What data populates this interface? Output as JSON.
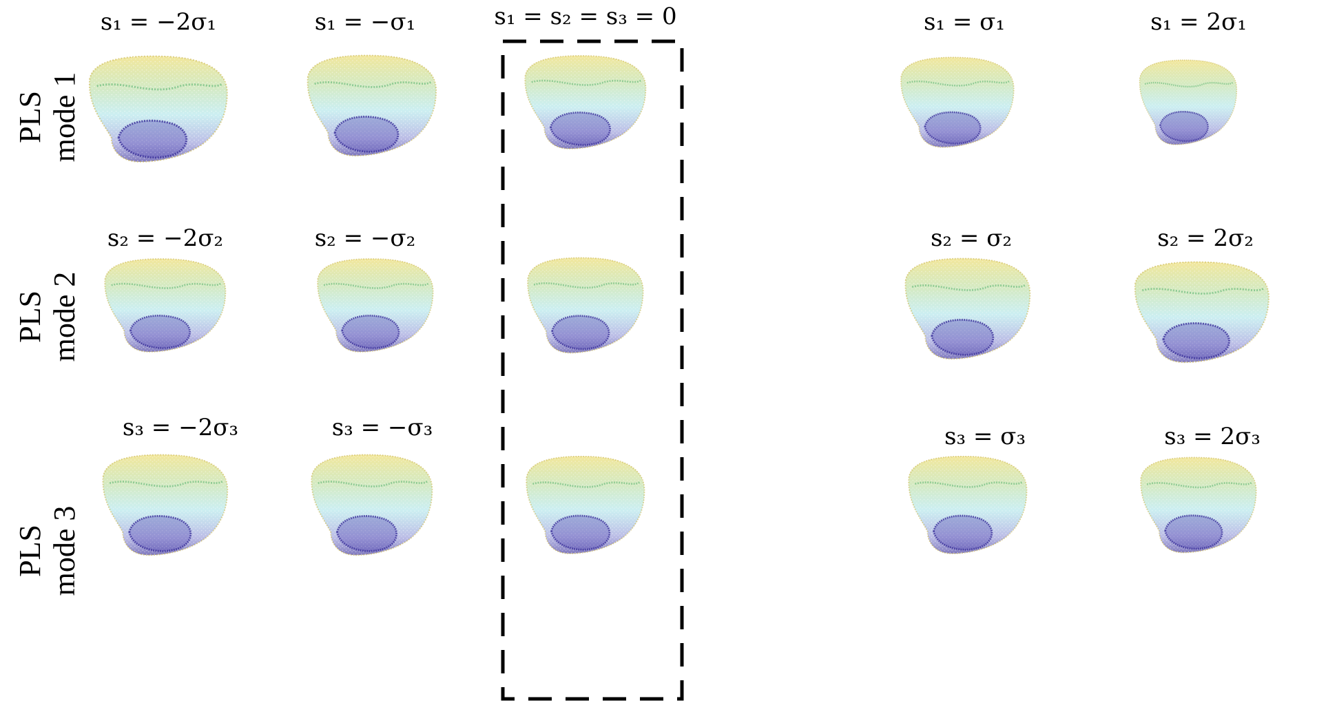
{
  "rows": [
    {
      "label_line1": "PLS",
      "label_line2": "mode 1",
      "columns": [
        {
          "label": "s₁ = −2σ₁"
        },
        {
          "label": "s₁ = −σ₁"
        },
        {
          "label": "s₁ = s₂ = s₃ = 0"
        },
        {
          "label": "s₁ = σ₁"
        },
        {
          "label": "s₁ = 2σ₁"
        }
      ]
    },
    {
      "label_line1": "PLS",
      "label_line2": "mode 2",
      "columns": [
        {
          "label": "s₂ = −2σ₂"
        },
        {
          "label": "s₂ = −σ₂"
        },
        {
          "label": ""
        },
        {
          "label": "s₂ = σ₂"
        },
        {
          "label": "s₂ = 2σ₂"
        }
      ]
    },
    {
      "label_line1": "PLS",
      "label_line2": "mode 3",
      "columns": [
        {
          "label": "s₃ = −2σ₃"
        },
        {
          "label": "s₃ = −σ₃"
        },
        {
          "label": ""
        },
        {
          "label": "s₃ = σ₃"
        },
        {
          "label": "s₃ = 2σ₃"
        }
      ]
    }
  ],
  "colors": {
    "top": "#e8d34a",
    "mid_green": "#5fbf8a",
    "mid_cyan": "#6fd3e0",
    "bottom": "#3a2f9a",
    "box_stroke": "#000000"
  }
}
